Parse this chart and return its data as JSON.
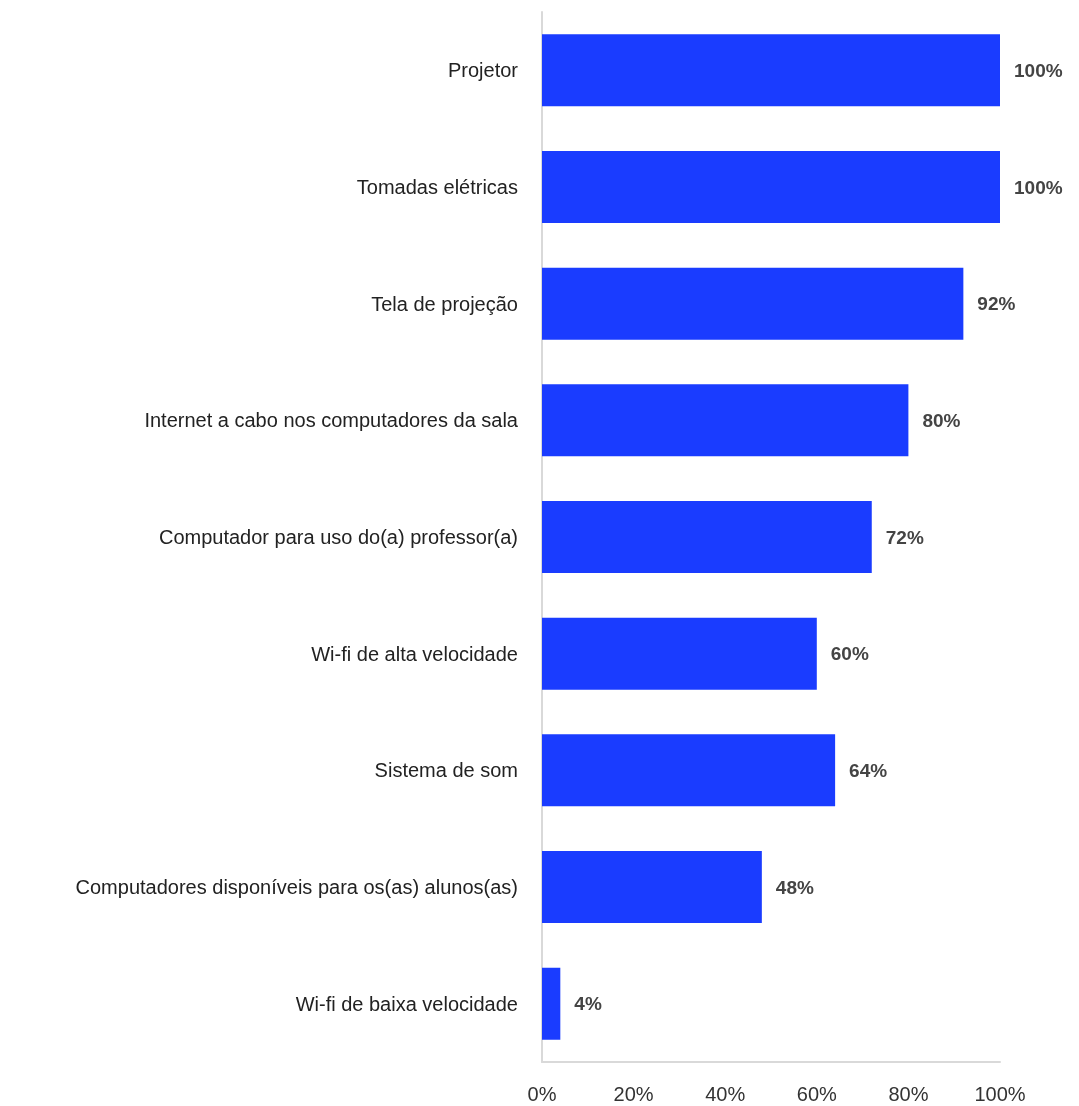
{
  "chart_data": {
    "type": "bar",
    "orientation": "horizontal",
    "categories": [
      "Projetor",
      "Tomadas elétricas",
      "Tela de projeção",
      "Internet a cabo nos computadores da sala",
      "Computador para uso do(a) professor(a)",
      "Wi-fi de alta velocidade",
      "Sistema de som",
      "Computadores disponíveis para os(as) alunos(as)",
      "Wi-fi de baixa velocidade"
    ],
    "values": [
      100,
      100,
      92,
      80,
      72,
      60,
      64,
      48,
      4
    ],
    "value_labels": [
      "100%",
      "100%",
      "92%",
      "80%",
      "72%",
      "60%",
      "64%",
      "48%",
      "4%"
    ],
    "color": "#1a3cff",
    "xlim": [
      0,
      100
    ],
    "xticks": [
      {
        "value": 0,
        "label": "0%"
      },
      {
        "value": 20,
        "label": "20%"
      },
      {
        "value": 40,
        "label": "40%"
      },
      {
        "value": 60,
        "label": "60%"
      },
      {
        "value": 80,
        "label": "80%"
      },
      {
        "value": 100,
        "label": "100%"
      }
    ],
    "grid": false
  }
}
